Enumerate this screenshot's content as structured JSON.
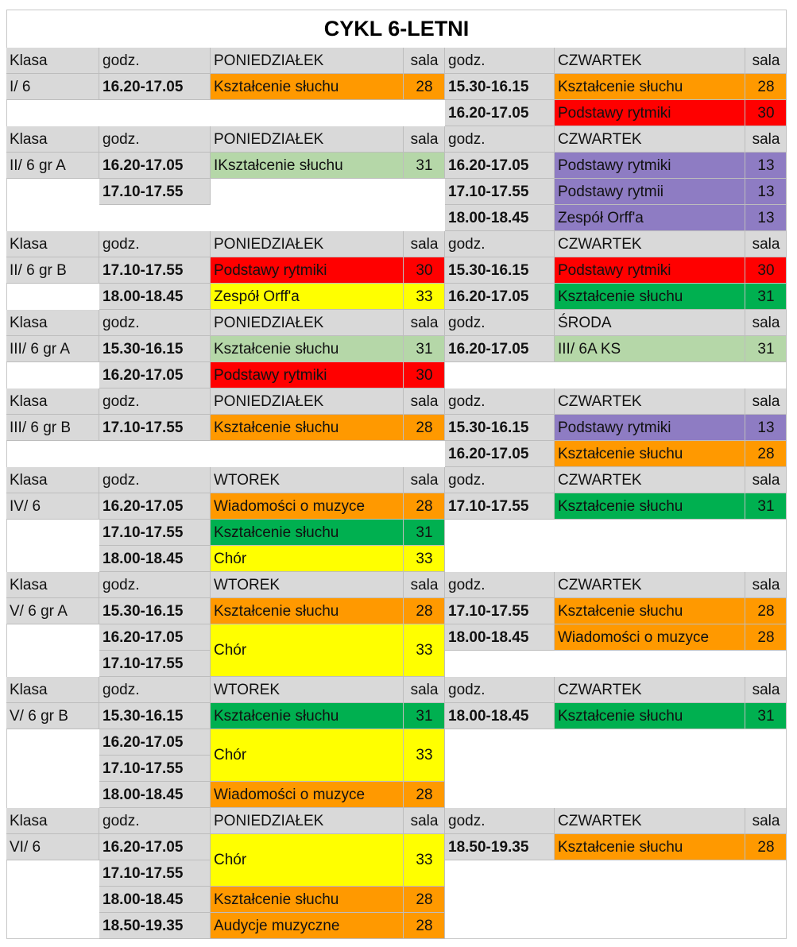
{
  "title": "CYKL 6-LETNI",
  "labels": {
    "class": "Klasa",
    "time": "godz.",
    "room": "sala"
  },
  "header_color": "#d9d9d9",
  "blocks": [
    {
      "class": "I/ 6",
      "day1": "PONIEDZIAŁEK",
      "day2": "CZWARTEK",
      "left": [
        {
          "times": [
            "16.20-17.05"
          ],
          "subject": "Kształcenie słuchu",
          "room": 28,
          "color": "#ff9900"
        }
      ],
      "right": [
        {
          "times": [
            "15.30-16.15"
          ],
          "subject": "Kształcenie słuchu",
          "room": 28,
          "color": "#ff9900"
        },
        {
          "times": [
            "16.20-17.05"
          ],
          "subject": "Podstawy rytmiki",
          "room": 30,
          "color": "#ff0000"
        }
      ]
    },
    {
      "class": "II/ 6 gr A",
      "day1": "PONIEDZIAŁEK",
      "day2": "CZWARTEK",
      "left": [
        {
          "times": [
            "16.20-17.05"
          ],
          "subject": "IKształcenie słuchu",
          "room": 31,
          "color": "#b5d7a8"
        },
        {
          "times": [
            "17.10-17.55"
          ]
        }
      ],
      "right": [
        {
          "times": [
            "16.20-17.05"
          ],
          "subject": "Podstawy rytmiki",
          "room": 13,
          "color": "#8e7cc3"
        },
        {
          "times": [
            "17.10-17.55"
          ],
          "subject": "Podstawy rytmii",
          "room": 13,
          "color": "#8e7cc3"
        },
        {
          "times": [
            "18.00-18.45"
          ],
          "subject": "Zespół Orff'a",
          "room": 13,
          "color": "#8e7cc3"
        }
      ]
    },
    {
      "class": "II/ 6 gr B",
      "day1": "PONIEDZIAŁEK",
      "day2": "CZWARTEK",
      "left": [
        {
          "times": [
            "17.10-17.55"
          ],
          "subject": "Podstawy rytmiki",
          "room": 30,
          "color": "#ff0000"
        },
        {
          "times": [
            "18.00-18.45"
          ],
          "subject": "Zespół Orff'a",
          "room": 33,
          "color": "#ffff00"
        }
      ],
      "right": [
        {
          "times": [
            "15.30-16.15"
          ],
          "subject": "Podstawy rytmiki",
          "room": 30,
          "color": "#ff0000"
        },
        {
          "times": [
            "16.20-17.05"
          ],
          "subject": "Kształcenie słuchu",
          "room": 31,
          "color": "#00b050"
        }
      ]
    },
    {
      "class": "III/ 6 gr A",
      "day1": "PONIEDZIAŁEK",
      "day2": "ŚRODA",
      "left": [
        {
          "times": [
            "15.30-16.15"
          ],
          "subject": "Kształcenie słuchu",
          "room": 31,
          "color": "#b5d7a8"
        },
        {
          "times": [
            "16.20-17.05"
          ],
          "subject": "Podstawy rytmiki",
          "room": 30,
          "color": "#ff0000"
        }
      ],
      "right": [
        {
          "times": [
            "16.20-17.05"
          ],
          "subject": "III/ 6A KS",
          "room": 31,
          "color": "#b5d7a8"
        }
      ]
    },
    {
      "class": "III/ 6 gr B",
      "day1": "PONIEDZIAŁEK",
      "day2": "CZWARTEK",
      "left": [
        {
          "times": [
            "17.10-17.55"
          ],
          "subject": "Kształcenie słuchu",
          "room": 28,
          "color": "#ff9900"
        }
      ],
      "right": [
        {
          "times": [
            "15.30-16.15"
          ],
          "subject": "Podstawy rytmiki",
          "room": 13,
          "color": "#8e7cc3"
        },
        {
          "times": [
            "16.20-17.05"
          ],
          "subject": "Kształcenie słuchu",
          "room": 28,
          "color": "#ff9900"
        }
      ]
    },
    {
      "class": "IV/ 6",
      "day1": "WTOREK",
      "day2": "CZWARTEK",
      "left": [
        {
          "times": [
            "16.20-17.05"
          ],
          "subject": "Wiadomości o muzyce",
          "room": 28,
          "color": "#ff9900"
        },
        {
          "times": [
            "17.10-17.55"
          ],
          "subject": "Kształcenie słuchu",
          "room": 31,
          "color": "#00b050"
        },
        {
          "times": [
            "18.00-18.45"
          ],
          "subject": "Chór",
          "room": 33,
          "color": "#ffff00"
        }
      ],
      "right": [
        {
          "times": [
            "17.10-17.55"
          ],
          "subject": "Kształcenie słuchu",
          "room": 31,
          "color": "#00b050"
        }
      ]
    },
    {
      "class": "V/ 6 gr A",
      "day1": "WTOREK",
      "day2": "CZWARTEK",
      "left": [
        {
          "times": [
            "15.30-16.15"
          ],
          "subject": "Kształcenie słuchu",
          "room": 28,
          "color": "#ff9900"
        },
        {
          "times": [
            "16.20-17.05",
            "17.10-17.55"
          ],
          "subject": "Chór",
          "room": 33,
          "color": "#ffff00"
        }
      ],
      "right": [
        {
          "times": [
            "17.10-17.55"
          ],
          "subject": "Kształcenie słuchu",
          "room": 28,
          "color": "#ff9900"
        },
        {
          "times": [
            "18.00-18.45"
          ],
          "subject": "Wiadomości o muzyce",
          "room": 28,
          "color": "#ff9900"
        }
      ]
    },
    {
      "class": "V/ 6 gr B",
      "day1": "WTOREK",
      "day2": "CZWARTEK",
      "left": [
        {
          "times": [
            "15.30-16.15"
          ],
          "subject": "Kształcenie słuchu",
          "room": 31,
          "color": "#00b050"
        },
        {
          "times": [
            "16.20-17.05",
            "17.10-17.55"
          ],
          "subject": "Chór",
          "room": 33,
          "color": "#ffff00"
        },
        {
          "times": [
            "18.00-18.45"
          ],
          "subject": "Wiadomości o muzyce",
          "room": 28,
          "color": "#ff9900"
        }
      ],
      "right": [
        {
          "times": [
            "18.00-18.45"
          ],
          "subject": "Kształcenie słuchu",
          "room": 31,
          "color": "#00b050"
        }
      ]
    },
    {
      "class": "VI/ 6",
      "day1": "PONIEDZIAŁEK",
      "day2": "CZWARTEK",
      "left": [
        {
          "times": [
            "16.20-17.05",
            "17.10-17.55"
          ],
          "subject": "Chór",
          "room": 33,
          "color": "#ffff00"
        },
        {
          "times": [
            "18.00-18.45"
          ],
          "subject": "Kształcenie słuchu",
          "room": 28,
          "color": "#ff9900"
        },
        {
          "times": [
            "18.50-19.35"
          ],
          "subject": "Audycje muzyczne",
          "room": 28,
          "color": "#ff9900"
        }
      ],
      "right": [
        {
          "times": [
            "18.50-19.35"
          ],
          "subject": "Kształcenie słuchu",
          "room": 28,
          "color": "#ff9900"
        }
      ]
    }
  ]
}
